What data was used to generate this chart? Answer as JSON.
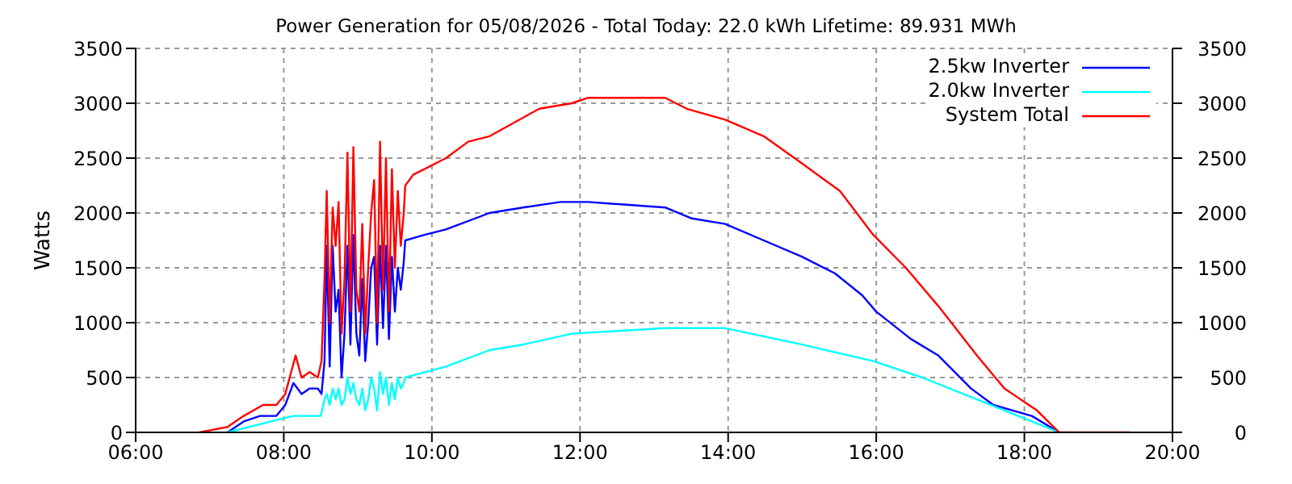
{
  "chart_data": {
    "type": "line",
    "title": "Power Generation for 05/08/2026 - Total Today: 22.0 kWh   Lifetime: 89.931 MWh",
    "ylabel": "Watts",
    "xlim": [
      6,
      20
    ],
    "xticks": [
      {
        "value": 6,
        "label": "06:00"
      },
      {
        "value": 8,
        "label": "08:00"
      },
      {
        "value": 10,
        "label": "10:00"
      },
      {
        "value": 12,
        "label": "12:00"
      },
      {
        "value": 14,
        "label": "14:00"
      },
      {
        "value": 16,
        "label": "16:00"
      },
      {
        "value": 18,
        "label": "18:00"
      },
      {
        "value": 20,
        "label": "20:00"
      }
    ],
    "ylim": [
      0,
      3500
    ],
    "yticks": [
      0,
      500,
      1000,
      1500,
      2000,
      2500,
      3000,
      3500
    ],
    "y2lim": [
      0,
      3500
    ],
    "y2ticks": [
      0,
      500,
      1000,
      1500,
      2000,
      2500,
      3000,
      3500
    ],
    "grid": true,
    "legend": "top right",
    "marker": "none",
    "line_style": "solid",
    "series": [
      {
        "name": "2.5kw Inverter",
        "color": "#0000ff",
        "x": [
          7.24,
          7.46,
          7.68,
          7.9,
          8.02,
          8.13,
          8.24,
          8.35,
          8.46,
          8.51,
          8.55,
          8.58,
          8.62,
          8.66,
          8.7,
          8.74,
          8.78,
          8.82,
          8.86,
          8.9,
          8.94,
          8.98,
          9.02,
          9.06,
          9.1,
          9.14,
          9.18,
          9.22,
          9.26,
          9.3,
          9.34,
          9.38,
          9.42,
          9.46,
          9.5,
          9.54,
          9.58,
          9.62,
          9.64,
          9.9,
          10.19,
          10.78,
          11.23,
          11.74,
          12.11,
          13.15,
          13.51,
          13.96,
          14.48,
          15,
          15.44,
          15.81,
          16,
          16.47,
          16.84,
          17.28,
          17.58,
          18.1,
          18.47
        ],
        "values": [
          0,
          100,
          150,
          150,
          250,
          450,
          350,
          400,
          400,
          350,
          650,
          1700,
          600,
          1700,
          1100,
          1300,
          500,
          900,
          1700,
          800,
          1800,
          900,
          700,
          1400,
          650,
          1000,
          1500,
          1600,
          800,
          1700,
          950,
          1700,
          850,
          1600,
          1100,
          1500,
          1300,
          1550,
          1750,
          1800,
          1850,
          2000,
          2050,
          2100,
          2100,
          2050,
          1950,
          1900,
          1750,
          1600,
          1450,
          1250,
          1100,
          850,
          700,
          400,
          250,
          150,
          0
        ]
      },
      {
        "name": "2.0kw Inverter",
        "color": "#00ffff",
        "x": [
          7.24,
          7.83,
          8.13,
          8.35,
          8.5,
          8.55,
          8.58,
          8.62,
          8.66,
          8.7,
          8.74,
          8.78,
          8.82,
          8.86,
          8.9,
          8.94,
          8.98,
          9.02,
          9.06,
          9.1,
          9.14,
          9.18,
          9.22,
          9.26,
          9.3,
          9.34,
          9.38,
          9.42,
          9.46,
          9.5,
          9.54,
          9.58,
          9.62,
          9.64,
          10.19,
          10.78,
          11.23,
          11.89,
          13.15,
          13.96,
          15,
          15.96,
          16.62,
          17.36,
          18.1,
          18.47
        ],
        "values": [
          0,
          100,
          150,
          150,
          150,
          300,
          350,
          250,
          400,
          300,
          400,
          250,
          300,
          500,
          350,
          450,
          300,
          250,
          400,
          200,
          300,
          500,
          400,
          200,
          550,
          350,
          500,
          250,
          450,
          300,
          500,
          400,
          450,
          500,
          600,
          750,
          800,
          900,
          950,
          950,
          800,
          650,
          500,
          300,
          100,
          0
        ]
      },
      {
        "name": "System Total",
        "color": "#ff0000",
        "x": [
          6.86,
          7.24,
          7.46,
          7.72,
          7.9,
          8.02,
          8.16,
          8.24,
          8.35,
          8.46,
          8.51,
          8.55,
          8.58,
          8.62,
          8.66,
          8.7,
          8.74,
          8.78,
          8.82,
          8.86,
          8.9,
          8.94,
          8.98,
          9.02,
          9.06,
          9.1,
          9.14,
          9.18,
          9.22,
          9.26,
          9.3,
          9.34,
          9.38,
          9.42,
          9.46,
          9.5,
          9.54,
          9.58,
          9.62,
          9.64,
          9.75,
          9.9,
          10.19,
          10.49,
          10.78,
          11.45,
          11.89,
          12.11,
          13.15,
          13.44,
          13.96,
          14.48,
          15,
          15.51,
          15.96,
          16.4,
          16.84,
          17.36,
          17.73,
          18.17,
          18.47,
          19.42
        ],
        "values": [
          0,
          50,
          150,
          250,
          250,
          350,
          700,
          500,
          550,
          500,
          650,
          1400,
          2200,
          1000,
          2050,
          1700,
          2100,
          900,
          1400,
          2550,
          1100,
          2600,
          1300,
          1100,
          1900,
          900,
          1500,
          2000,
          2300,
          1000,
          2650,
          1300,
          2500,
          1100,
          2400,
          1500,
          2200,
          1700,
          2000,
          2250,
          2350,
          2400,
          2500,
          2650,
          2700,
          2950,
          3000,
          3050,
          3050,
          2950,
          2850,
          2700,
          2450,
          2200,
          1800,
          1500,
          1150,
          700,
          400,
          200,
          0,
          0
        ]
      }
    ]
  }
}
